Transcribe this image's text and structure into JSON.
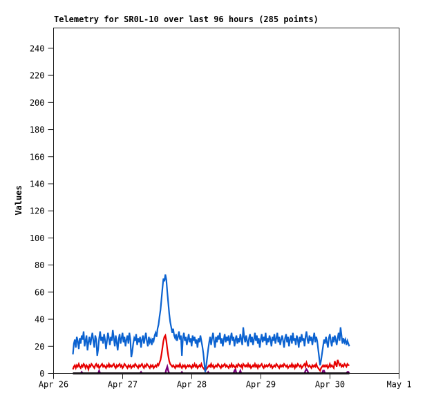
{
  "chart_data": {
    "type": "line",
    "title": "Telemetry for SR0L-10 over last 96 hours (285 points)",
    "ylabel": "Values",
    "xlabel": "",
    "ylim": [
      0,
      255
    ],
    "x_range_hours": [
      0,
      120
    ],
    "points_per_series": 285,
    "data_start_hours": 6.72,
    "data_duration_hours": 96,
    "grid": "off",
    "legend": "none",
    "y_ticks": [
      0,
      20,
      40,
      60,
      80,
      100,
      120,
      140,
      160,
      180,
      200,
      220,
      240
    ],
    "x_ticks": [
      {
        "label": "Apr 26",
        "hours": 0
      },
      {
        "label": "Apr 27",
        "hours": 24
      },
      {
        "label": "Apr 28",
        "hours": 48
      },
      {
        "label": "Apr 29",
        "hours": 72
      },
      {
        "label": "Apr 30",
        "hours": 96
      },
      {
        "label": "May 1",
        "hours": 120
      }
    ],
    "series": [
      {
        "name": "series-purple",
        "color": "#7a007a",
        "width": 2.4,
        "base": 0,
        "spikes": {
          "9": 1,
          "27": 2,
          "70": 1,
          "96": 3,
          "97": 5,
          "98": 2,
          "112": 1,
          "139": 1,
          "166": 2,
          "167": 3,
          "172": 2,
          "239": 2,
          "240": 3,
          "241": 2,
          "257": 2,
          "258": 2,
          "282": 1,
          "283": 1
        }
      },
      {
        "name": "series-black",
        "color": "#000000",
        "width": 2.8,
        "constant": 0
      },
      {
        "name": "series-red",
        "color": "#e60000",
        "width": 2.2,
        "values": [
          3,
          5,
          6,
          4,
          6,
          5,
          7,
          5,
          4,
          6,
          5,
          7,
          6,
          4,
          6,
          5,
          3,
          6,
          5,
          7,
          6,
          5,
          4,
          6,
          7,
          5,
          6,
          4,
          5,
          6,
          7,
          5,
          6,
          5,
          4,
          6,
          5,
          7,
          5,
          6,
          5,
          6,
          7,
          5,
          4,
          6,
          5,
          6,
          7,
          5,
          6,
          4,
          5,
          7,
          6,
          5,
          4,
          6,
          5,
          6,
          4,
          5,
          6,
          5,
          7,
          6,
          5,
          4,
          6,
          5,
          6,
          7,
          5,
          4,
          6,
          5,
          7,
          6,
          5,
          4,
          6,
          5,
          6,
          4,
          5,
          6,
          5,
          7,
          6,
          8,
          10,
          14,
          19,
          24,
          27,
          28,
          24,
          18,
          13,
          9,
          7,
          6,
          5,
          6,
          5,
          4,
          6,
          5,
          6,
          5,
          7,
          5,
          4,
          6,
          5,
          6,
          4,
          5,
          6,
          5,
          6,
          5,
          4,
          6,
          5,
          7,
          5,
          6,
          4,
          5,
          6,
          5,
          7,
          5,
          4,
          3,
          2,
          3,
          4,
          5,
          6,
          5,
          7,
          5,
          6,
          4,
          5,
          6,
          5,
          7,
          6,
          5,
          4,
          6,
          5,
          6,
          7,
          5,
          6,
          5,
          4,
          6,
          5,
          7,
          5,
          6,
          5,
          4,
          6,
          5,
          7,
          6,
          5,
          6,
          4,
          7,
          6,
          5,
          6,
          5,
          7,
          5,
          6,
          4,
          5,
          6,
          5,
          7,
          5,
          6,
          4,
          6,
          5,
          6,
          7,
          5,
          4,
          6,
          5,
          6,
          5,
          6,
          7,
          5,
          6,
          4,
          5,
          6,
          5,
          7,
          6,
          5,
          4,
          6,
          5,
          6,
          5,
          7,
          6,
          5,
          6,
          4,
          5,
          6,
          5,
          7,
          5,
          6,
          4,
          6,
          5,
          7,
          6,
          5,
          6,
          4,
          5,
          6,
          7,
          5,
          8,
          6,
          5,
          6,
          5,
          4,
          6,
          5,
          6,
          5,
          7,
          5,
          4,
          3,
          2,
          4,
          5,
          6,
          5,
          6,
          5,
          6,
          4,
          5,
          7,
          5,
          6,
          5,
          4,
          9,
          7,
          5,
          10,
          8,
          6,
          7,
          5,
          6,
          5,
          7,
          6,
          5,
          7,
          6,
          6
        ]
      },
      {
        "name": "series-blue",
        "color": "#0b62d0",
        "width": 2.2,
        "values": [
          14,
          22,
          25,
          19,
          27,
          24,
          18,
          26,
          22,
          28,
          25,
          31,
          20,
          24,
          28,
          17,
          23,
          27,
          21,
          26,
          30,
          24,
          19,
          28,
          25,
          13,
          18,
          26,
          31,
          24,
          27,
          22,
          29,
          25,
          18,
          24,
          30,
          26,
          21,
          27,
          24,
          32,
          26,
          20,
          28,
          23,
          17,
          25,
          29,
          22,
          26,
          30,
          23,
          27,
          20,
          25,
          28,
          22,
          30,
          25,
          12,
          16,
          22,
          26,
          24,
          29,
          21,
          26,
          23,
          27,
          19,
          25,
          28,
          22,
          26,
          30,
          24,
          20,
          27,
          23,
          25,
          21,
          26,
          24,
          28,
          30,
          27,
          33,
          36,
          42,
          47,
          55,
          63,
          70,
          68,
          73,
          69,
          60,
          52,
          44,
          38,
          34,
          30,
          33,
          28,
          26,
          29,
          24,
          27,
          31,
          25,
          28,
          13,
          26,
          30,
          24,
          27,
          21,
          25,
          29,
          23,
          26,
          20,
          28,
          24,
          27,
          22,
          25,
          19,
          26,
          23,
          28,
          24,
          20,
          15,
          8,
          1,
          6,
          12,
          18,
          23,
          27,
          21,
          26,
          30,
          24,
          19,
          27,
          23,
          28,
          25,
          30,
          22,
          26,
          20,
          25,
          29,
          23,
          27,
          24,
          28,
          21,
          26,
          30,
          24,
          27,
          20,
          25,
          28,
          22,
          26,
          23,
          29,
          25,
          21,
          34,
          27,
          23,
          28,
          24,
          20,
          26,
          29,
          23,
          27,
          21,
          25,
          30,
          24,
          28,
          22,
          26,
          19,
          25,
          29,
          23,
          27,
          24,
          30,
          21,
          26,
          23,
          28,
          25,
          20,
          27,
          24,
          29,
          22,
          26,
          30,
          23,
          27,
          21,
          25,
          28,
          24,
          19,
          26,
          29,
          23,
          27,
          20,
          25,
          28,
          22,
          30,
          24,
          26,
          21,
          28,
          25,
          19,
          27,
          23,
          29,
          24,
          26,
          20,
          27,
          31,
          25,
          22,
          28,
          24,
          27,
          21,
          26,
          30,
          23,
          27,
          24,
          18,
          12,
          6,
          10,
          15,
          20,
          25,
          22,
          27,
          23,
          19,
          26,
          29,
          24,
          20,
          27,
          23,
          28,
          25,
          21,
          26,
          30,
          24,
          34,
          28,
          22,
          26,
          23,
          25,
          21,
          24,
          22,
          20
        ]
      }
    ]
  }
}
